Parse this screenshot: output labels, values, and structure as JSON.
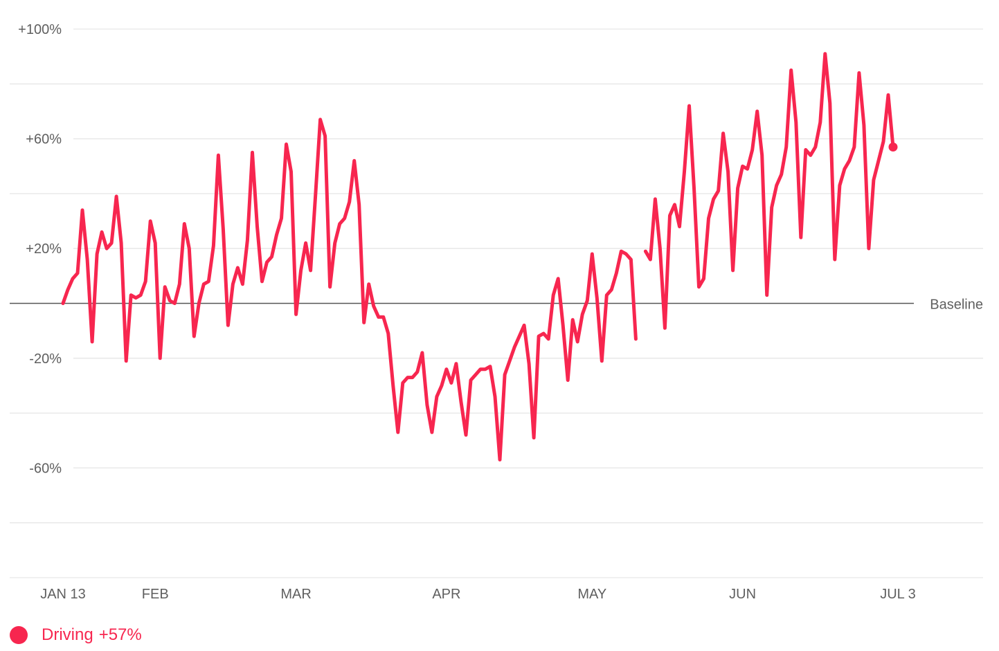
{
  "colors": {
    "series": "#f7264f",
    "grid": "#e6e6e6",
    "baseline": "#555555",
    "text": "#5f5f5f"
  },
  "legend": {
    "label": "Driving",
    "value": "+57%",
    "icon": "dot-icon"
  },
  "chart_data": {
    "type": "line",
    "y_unit": "percent change vs baseline",
    "ylim": [
      -100,
      100
    ],
    "y_ticks": [
      {
        "value": 100,
        "label": "+100%"
      },
      {
        "value": 80,
        "label": ""
      },
      {
        "value": 60,
        "label": "+60%"
      },
      {
        "value": 40,
        "label": ""
      },
      {
        "value": 20,
        "label": "+20%"
      },
      {
        "value": -20,
        "label": "-20%"
      },
      {
        "value": -40,
        "label": ""
      },
      {
        "value": -60,
        "label": "-60%"
      },
      {
        "value": -80,
        "label": ""
      },
      {
        "value": -100,
        "label": ""
      }
    ],
    "baseline": {
      "value": 0,
      "label": "Baseline"
    },
    "x_start": "2020-01-13",
    "x_end": "2020-07-03",
    "x_range": [
      "2020-01-13",
      "2020-07-16"
    ],
    "x_ticks": [
      {
        "date": "2020-01-13",
        "label": "JAN 13"
      },
      {
        "date": "2020-02-01",
        "label": "FEB"
      },
      {
        "date": "2020-03-01",
        "label": "MAR"
      },
      {
        "date": "2020-04-01",
        "label": "APR"
      },
      {
        "date": "2020-05-01",
        "label": "MAY"
      },
      {
        "date": "2020-06-01",
        "label": "JUN"
      },
      {
        "date": "2020-07-03",
        "label": "JUL 3"
      }
    ],
    "grid": true,
    "legend_position": "bottom-left",
    "series": [
      {
        "name": "Driving",
        "values": [
          0,
          5,
          9,
          11,
          34,
          16,
          -14,
          18,
          26,
          20,
          22,
          39,
          22,
          -21,
          3,
          2,
          3,
          8,
          30,
          22,
          -20,
          6,
          1,
          0,
          7,
          29,
          20,
          -12,
          0,
          7,
          8,
          21,
          54,
          27,
          -8,
          7,
          13,
          7,
          23,
          55,
          28,
          8,
          15,
          17,
          25,
          31,
          58,
          48,
          -4,
          12,
          22,
          12,
          39,
          67,
          61,
          6,
          22,
          29,
          31,
          37,
          52,
          36,
          -7,
          7,
          -1,
          -5,
          -5,
          -11,
          -30,
          -47,
          -29,
          -27,
          -27,
          -25,
          -18,
          -37,
          -47,
          -34,
          -30,
          -24,
          -29,
          -22,
          -36,
          -48,
          -28,
          -26,
          -24,
          -24,
          -23,
          -34,
          -57,
          -26,
          -21,
          -16,
          -12,
          -8,
          -22,
          -49,
          -12,
          -11,
          -13,
          3,
          9,
          -8,
          -28,
          -6,
          -14,
          -4,
          1,
          18,
          2,
          -21,
          3,
          5,
          11,
          19,
          18,
          16,
          -13,
          null,
          19,
          16,
          38,
          20,
          -9,
          32,
          36,
          28,
          48,
          72,
          42,
          6,
          9,
          31,
          38,
          41,
          62,
          48,
          12,
          42,
          50,
          49,
          56,
          70,
          54,
          3,
          35,
          43,
          47,
          57,
          85,
          66,
          24,
          56,
          54,
          57,
          66,
          91,
          73,
          16,
          43,
          49,
          52,
          57,
          84,
          65,
          20,
          45,
          52,
          59,
          76,
          57
        ]
      }
    ]
  }
}
